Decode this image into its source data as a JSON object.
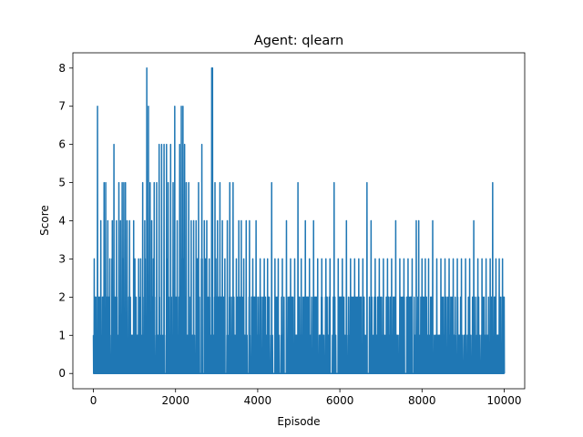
{
  "chart_data": {
    "type": "line",
    "title": "Agent: qlearn",
    "xlabel": "Episode",
    "ylabel": "Score",
    "xlim": [
      -500,
      10500
    ],
    "ylim": [
      -0.4,
      8.4
    ],
    "xticks": [
      0,
      2000,
      4000,
      6000,
      8000,
      10000
    ],
    "yticks": [
      0,
      1,
      2,
      3,
      4,
      5,
      6,
      7,
      8
    ],
    "grid": false,
    "color": "#1f77b4",
    "series": [
      {
        "x_range": [
          0,
          10000
        ],
        "peaks": [
          {
            "x": 0,
            "y": 1
          },
          {
            "x": 20,
            "y": 3
          },
          {
            "x": 60,
            "y": 2
          },
          {
            "x": 100,
            "y": 7
          },
          {
            "x": 180,
            "y": 4
          },
          {
            "x": 260,
            "y": 5
          },
          {
            "x": 300,
            "y": 5
          },
          {
            "x": 350,
            "y": 4
          },
          {
            "x": 400,
            "y": 3
          },
          {
            "x": 460,
            "y": 4
          },
          {
            "x": 500,
            "y": 6
          },
          {
            "x": 560,
            "y": 4
          },
          {
            "x": 620,
            "y": 5
          },
          {
            "x": 660,
            "y": 4
          },
          {
            "x": 700,
            "y": 5
          },
          {
            "x": 740,
            "y": 5
          },
          {
            "x": 780,
            "y": 5
          },
          {
            "x": 820,
            "y": 4
          },
          {
            "x": 880,
            "y": 4
          },
          {
            "x": 980,
            "y": 4
          },
          {
            "x": 1100,
            "y": 3
          },
          {
            "x": 1200,
            "y": 5
          },
          {
            "x": 1250,
            "y": 4
          },
          {
            "x": 1300,
            "y": 8
          },
          {
            "x": 1340,
            "y": 7
          },
          {
            "x": 1380,
            "y": 5
          },
          {
            "x": 1420,
            "y": 4
          },
          {
            "x": 1480,
            "y": 5
          },
          {
            "x": 1540,
            "y": 5
          },
          {
            "x": 1600,
            "y": 6
          },
          {
            "x": 1660,
            "y": 6
          },
          {
            "x": 1720,
            "y": 6
          },
          {
            "x": 1780,
            "y": 6
          },
          {
            "x": 1820,
            "y": 5
          },
          {
            "x": 1880,
            "y": 6
          },
          {
            "x": 1940,
            "y": 5
          },
          {
            "x": 1980,
            "y": 7
          },
          {
            "x": 2040,
            "y": 4
          },
          {
            "x": 2100,
            "y": 6
          },
          {
            "x": 2140,
            "y": 7
          },
          {
            "x": 2180,
            "y": 7
          },
          {
            "x": 2220,
            "y": 6
          },
          {
            "x": 2260,
            "y": 5
          },
          {
            "x": 2320,
            "y": 5
          },
          {
            "x": 2380,
            "y": 4
          },
          {
            "x": 2440,
            "y": 4
          },
          {
            "x": 2500,
            "y": 4
          },
          {
            "x": 2560,
            "y": 5
          },
          {
            "x": 2640,
            "y": 6
          },
          {
            "x": 2700,
            "y": 4
          },
          {
            "x": 2760,
            "y": 4
          },
          {
            "x": 2820,
            "y": 3
          },
          {
            "x": 2880,
            "y": 8
          },
          {
            "x": 2900,
            "y": 8
          },
          {
            "x": 2960,
            "y": 5
          },
          {
            "x": 3020,
            "y": 4
          },
          {
            "x": 3080,
            "y": 5
          },
          {
            "x": 3140,
            "y": 4
          },
          {
            "x": 3200,
            "y": 3
          },
          {
            "x": 3260,
            "y": 4
          },
          {
            "x": 3320,
            "y": 5
          },
          {
            "x": 3400,
            "y": 5
          },
          {
            "x": 3480,
            "y": 3
          },
          {
            "x": 3540,
            "y": 4
          },
          {
            "x": 3600,
            "y": 4
          },
          {
            "x": 3660,
            "y": 3
          },
          {
            "x": 3720,
            "y": 4
          },
          {
            "x": 3800,
            "y": 4
          },
          {
            "x": 3880,
            "y": 3
          },
          {
            "x": 3960,
            "y": 4
          },
          {
            "x": 4060,
            "y": 3
          },
          {
            "x": 4160,
            "y": 3
          },
          {
            "x": 4240,
            "y": 3
          },
          {
            "x": 4340,
            "y": 5
          },
          {
            "x": 4420,
            "y": 3
          },
          {
            "x": 4500,
            "y": 3
          },
          {
            "x": 4600,
            "y": 3
          },
          {
            "x": 4700,
            "y": 4
          },
          {
            "x": 4800,
            "y": 3
          },
          {
            "x": 4900,
            "y": 3
          },
          {
            "x": 4980,
            "y": 5
          },
          {
            "x": 5060,
            "y": 3
          },
          {
            "x": 5160,
            "y": 4
          },
          {
            "x": 5260,
            "y": 3
          },
          {
            "x": 5360,
            "y": 4
          },
          {
            "x": 5460,
            "y": 3
          },
          {
            "x": 5560,
            "y": 3
          },
          {
            "x": 5660,
            "y": 3
          },
          {
            "x": 5760,
            "y": 3
          },
          {
            "x": 5860,
            "y": 5
          },
          {
            "x": 5960,
            "y": 3
          },
          {
            "x": 6060,
            "y": 3
          },
          {
            "x": 6160,
            "y": 4
          },
          {
            "x": 6260,
            "y": 3
          },
          {
            "x": 6360,
            "y": 3
          },
          {
            "x": 6460,
            "y": 3
          },
          {
            "x": 6560,
            "y": 3
          },
          {
            "x": 6660,
            "y": 5
          },
          {
            "x": 6760,
            "y": 4
          },
          {
            "x": 6860,
            "y": 3
          },
          {
            "x": 6960,
            "y": 3
          },
          {
            "x": 7060,
            "y": 3
          },
          {
            "x": 7160,
            "y": 3
          },
          {
            "x": 7260,
            "y": 3
          },
          {
            "x": 7360,
            "y": 4
          },
          {
            "x": 7460,
            "y": 3
          },
          {
            "x": 7560,
            "y": 3
          },
          {
            "x": 7660,
            "y": 3
          },
          {
            "x": 7760,
            "y": 3
          },
          {
            "x": 7860,
            "y": 4
          },
          {
            "x": 7920,
            "y": 4
          },
          {
            "x": 8000,
            "y": 3
          },
          {
            "x": 8080,
            "y": 3
          },
          {
            "x": 8160,
            "y": 3
          },
          {
            "x": 8260,
            "y": 4
          },
          {
            "x": 8360,
            "y": 3
          },
          {
            "x": 8460,
            "y": 3
          },
          {
            "x": 8560,
            "y": 3
          },
          {
            "x": 8660,
            "y": 3
          },
          {
            "x": 8760,
            "y": 3
          },
          {
            "x": 8860,
            "y": 3
          },
          {
            "x": 8960,
            "y": 3
          },
          {
            "x": 9060,
            "y": 3
          },
          {
            "x": 9160,
            "y": 3
          },
          {
            "x": 9260,
            "y": 4
          },
          {
            "x": 9360,
            "y": 3
          },
          {
            "x": 9460,
            "y": 3
          },
          {
            "x": 9560,
            "y": 3
          },
          {
            "x": 9660,
            "y": 3
          },
          {
            "x": 9720,
            "y": 5
          },
          {
            "x": 9800,
            "y": 3
          },
          {
            "x": 9880,
            "y": 3
          },
          {
            "x": 9960,
            "y": 3
          }
        ],
        "base_max_by_range": [
          {
            "x_range": [
              0,
              250
            ],
            "max": 2
          },
          {
            "x_range": [
              250,
              3500
            ],
            "max": 3
          },
          {
            "x_range": [
              3500,
              10000
            ],
            "max": 2
          }
        ]
      }
    ]
  }
}
